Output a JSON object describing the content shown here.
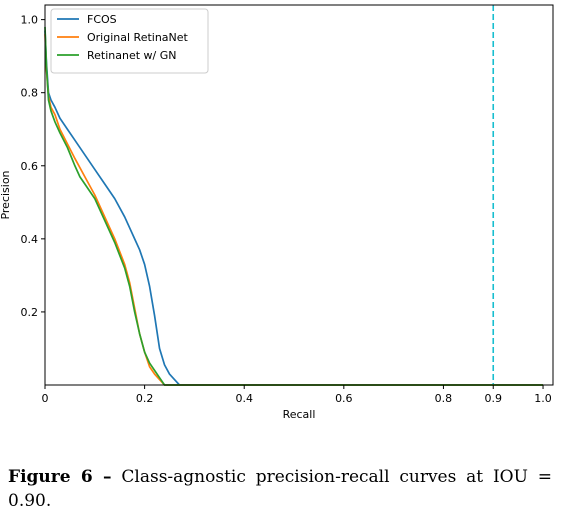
{
  "chart_data": {
    "type": "line",
    "title": "",
    "xlabel": "Recall",
    "ylabel": "Precision",
    "xlim": [
      0,
      1.02
    ],
    "ylim": [
      0,
      1.04
    ],
    "xticks": [
      0,
      0.2,
      0.4,
      0.6,
      0.8,
      0.9,
      1.0
    ],
    "xtick_labels": [
      "0",
      "0.2",
      "0.4",
      "0.6",
      "0.8",
      "0.9",
      "1.0"
    ],
    "yticks": [
      0.2,
      0.4,
      0.6,
      0.8,
      1.0
    ],
    "ytick_labels": [
      "0.2",
      "0.4",
      "0.6",
      "0.8",
      "1.0"
    ],
    "grid": false,
    "legend": "top-left",
    "vline": {
      "x": 0.9,
      "color": "#17becf",
      "style": "dashed"
    },
    "series": [
      {
        "name": "FCOS",
        "color": "#1f77b4",
        "x": [
          0.0,
          0.003,
          0.007,
          0.012,
          0.02,
          0.03,
          0.045,
          0.06,
          0.08,
          0.1,
          0.12,
          0.14,
          0.16,
          0.18,
          0.19,
          0.2,
          0.21,
          0.22,
          0.23,
          0.24,
          0.25,
          0.26,
          0.27,
          1.0
        ],
        "y": [
          0.97,
          0.88,
          0.8,
          0.78,
          0.76,
          0.73,
          0.7,
          0.67,
          0.63,
          0.59,
          0.55,
          0.51,
          0.46,
          0.4,
          0.37,
          0.33,
          0.27,
          0.19,
          0.1,
          0.055,
          0.03,
          0.015,
          0.0,
          0.0
        ]
      },
      {
        "name": "Original RetinaNet",
        "color": "#ff7f0e",
        "x": [
          0.0,
          0.003,
          0.007,
          0.012,
          0.02,
          0.03,
          0.045,
          0.06,
          0.08,
          0.1,
          0.12,
          0.14,
          0.16,
          0.17,
          0.18,
          0.19,
          0.2,
          0.21,
          0.22,
          0.23,
          0.24,
          1.0
        ],
        "y": [
          0.96,
          0.86,
          0.79,
          0.76,
          0.74,
          0.7,
          0.66,
          0.62,
          0.57,
          0.52,
          0.46,
          0.4,
          0.33,
          0.28,
          0.21,
          0.14,
          0.09,
          0.05,
          0.03,
          0.015,
          0.0,
          0.0
        ]
      },
      {
        "name": "Retinanet w/ GN",
        "color": "#2ca02c",
        "x": [
          0.0,
          0.003,
          0.007,
          0.012,
          0.02,
          0.03,
          0.045,
          0.06,
          0.07,
          0.08,
          0.1,
          0.12,
          0.14,
          0.16,
          0.17,
          0.18,
          0.19,
          0.2,
          0.21,
          0.22,
          0.23,
          0.24,
          1.0
        ],
        "y": [
          0.98,
          0.87,
          0.78,
          0.75,
          0.72,
          0.69,
          0.65,
          0.6,
          0.57,
          0.55,
          0.51,
          0.45,
          0.39,
          0.32,
          0.27,
          0.2,
          0.14,
          0.09,
          0.06,
          0.04,
          0.02,
          0.0,
          0.0
        ]
      }
    ]
  },
  "caption": {
    "label": "Figure 6 –",
    "text": "Class-agnostic precision-recall curves at IOU = 0.90."
  }
}
